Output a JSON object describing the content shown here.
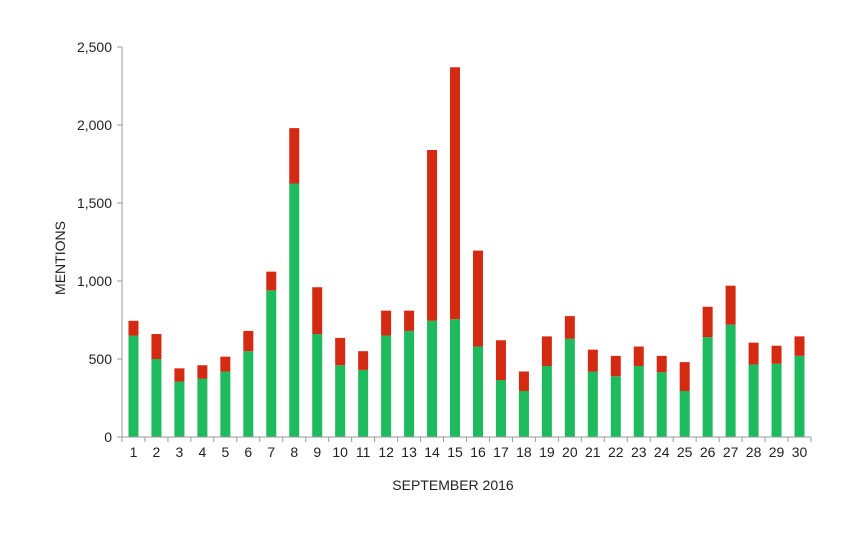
{
  "chart_data": {
    "type": "bar",
    "stacked": true,
    "title": "",
    "xlabel": "SEPTEMBER 2016",
    "ylabel": "MENTIONS",
    "ylim": [
      0,
      2500
    ],
    "yticks": [
      "0",
      "500",
      "1,000",
      "1,500",
      "2,000",
      "2,500"
    ],
    "ytick_values": [
      0,
      500,
      1000,
      1500,
      2000,
      2500
    ],
    "grid": false,
    "legend": "none",
    "categories": [
      "1",
      "2",
      "3",
      "4",
      "5",
      "6",
      "7",
      "8",
      "9",
      "10",
      "11",
      "12",
      "13",
      "14",
      "15",
      "16",
      "17",
      "18",
      "19",
      "20",
      "21",
      "22",
      "23",
      "24",
      "25",
      "26",
      "27",
      "28",
      "29",
      "30"
    ],
    "series": [
      {
        "color": "#1dba5e",
        "values": [
          650,
          500,
          355,
          375,
          420,
          550,
          940,
          1625,
          660,
          460,
          430,
          650,
          680,
          745,
          755,
          580,
          365,
          295,
          455,
          630,
          420,
          390,
          455,
          415,
          295,
          640,
          720,
          465,
          470,
          520
        ]
      },
      {
        "color": "#d42a12",
        "values": [
          95,
          160,
          85,
          85,
          95,
          130,
          120,
          355,
          300,
          175,
          120,
          160,
          130,
          1095,
          1615,
          615,
          255,
          125,
          190,
          145,
          140,
          130,
          125,
          105,
          185,
          195,
          250,
          140,
          115,
          125
        ]
      }
    ]
  }
}
